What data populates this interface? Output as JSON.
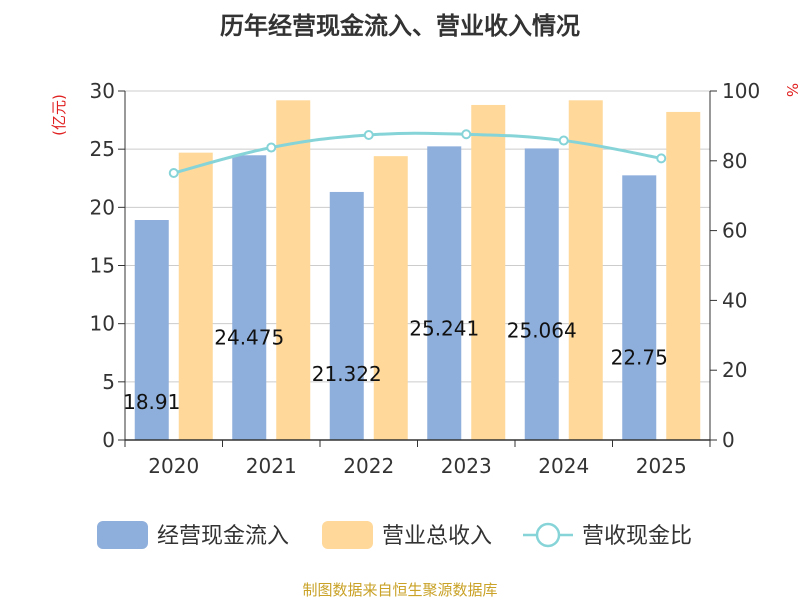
{
  "title": "历年经营现金流入、营业收入情况",
  "source": "制图数据来自恒生聚源数据库",
  "axes": {
    "left_unit": "(亿元)",
    "right_unit": "%"
  },
  "colors": {
    "cash_inflow": "#8EAEDB",
    "revenue": "#FFD89A",
    "ratio": "#86D4D8",
    "unit_label": "#E02020",
    "source": "#C9A227"
  },
  "chart_data": {
    "type": "bar",
    "categories": [
      "2020",
      "2021",
      "2022",
      "2023",
      "2024",
      "2025"
    ],
    "series": [
      {
        "name": "经营现金流入",
        "axis": "left",
        "values": [
          18.91,
          24.475,
          21.322,
          25.241,
          25.064,
          22.75
        ]
      },
      {
        "name": "营业总收入",
        "axis": "left",
        "values": [
          24.7,
          29.2,
          24.4,
          28.8,
          29.2,
          28.2
        ]
      },
      {
        "name": "营收现金比",
        "axis": "right",
        "type": "line",
        "values": [
          76.5,
          83.8,
          87.4,
          87.6,
          85.8,
          80.7
        ]
      }
    ],
    "data_labels": [
      "18.91",
      "24.475",
      "21.322",
      "25.241",
      "25.064",
      "22.75"
    ],
    "ylim_left": [
      0,
      30
    ],
    "yticks_left": [
      0,
      5,
      10,
      15,
      20,
      25,
      30
    ],
    "ylim_right": [
      0,
      100
    ],
    "yticks_right": [
      0,
      20,
      40,
      60,
      80,
      100
    ],
    "ylabel_left": "(亿元)",
    "ylabel_right": "%",
    "grid": true,
    "legend_position": "bottom"
  }
}
